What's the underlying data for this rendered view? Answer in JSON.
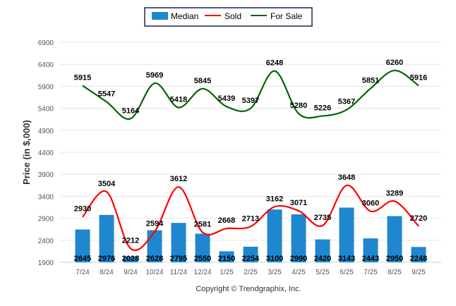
{
  "chart_data": {
    "type": "bar",
    "title": "",
    "xlabel": "",
    "ylabel": "Price (in $,000)",
    "ylim": [
      1900,
      6900
    ],
    "yticks": [
      1900,
      2400,
      2900,
      3400,
      3900,
      4400,
      4900,
      5400,
      5900,
      6400,
      6900
    ],
    "grid": true,
    "legend_position": "top-center",
    "categories": [
      "7/24",
      "8/24",
      "9/24",
      "10/24",
      "11/24",
      "12/24",
      "1/25",
      "2/25",
      "3/25",
      "4/25",
      "5/25",
      "6/25",
      "7/25",
      "8/25",
      "9/25"
    ],
    "series": [
      {
        "name": "Median",
        "kind": "bar",
        "color": "#1f87d0",
        "values": [
          2645,
          2976,
          2028,
          2628,
          2795,
          2550,
          2150,
          2254,
          3100,
          2990,
          2420,
          3143,
          2443,
          2950,
          2248
        ]
      },
      {
        "name": "Sold",
        "kind": "line",
        "color": "#ff0000",
        "values": [
          2930,
          3504,
          2212,
          2594,
          3612,
          2581,
          2668,
          2713,
          3162,
          3071,
          2735,
          3648,
          3060,
          3289,
          2720
        ]
      },
      {
        "name": "For Sale",
        "kind": "line",
        "color": "#006400",
        "values": [
          5915,
          5547,
          5164,
          5969,
          5418,
          5845,
          5439,
          5397,
          6248,
          5280,
          5226,
          5367,
          5851,
          6260,
          5916
        ]
      }
    ],
    "footer": "Copyright © Trendgraphix, Inc."
  }
}
